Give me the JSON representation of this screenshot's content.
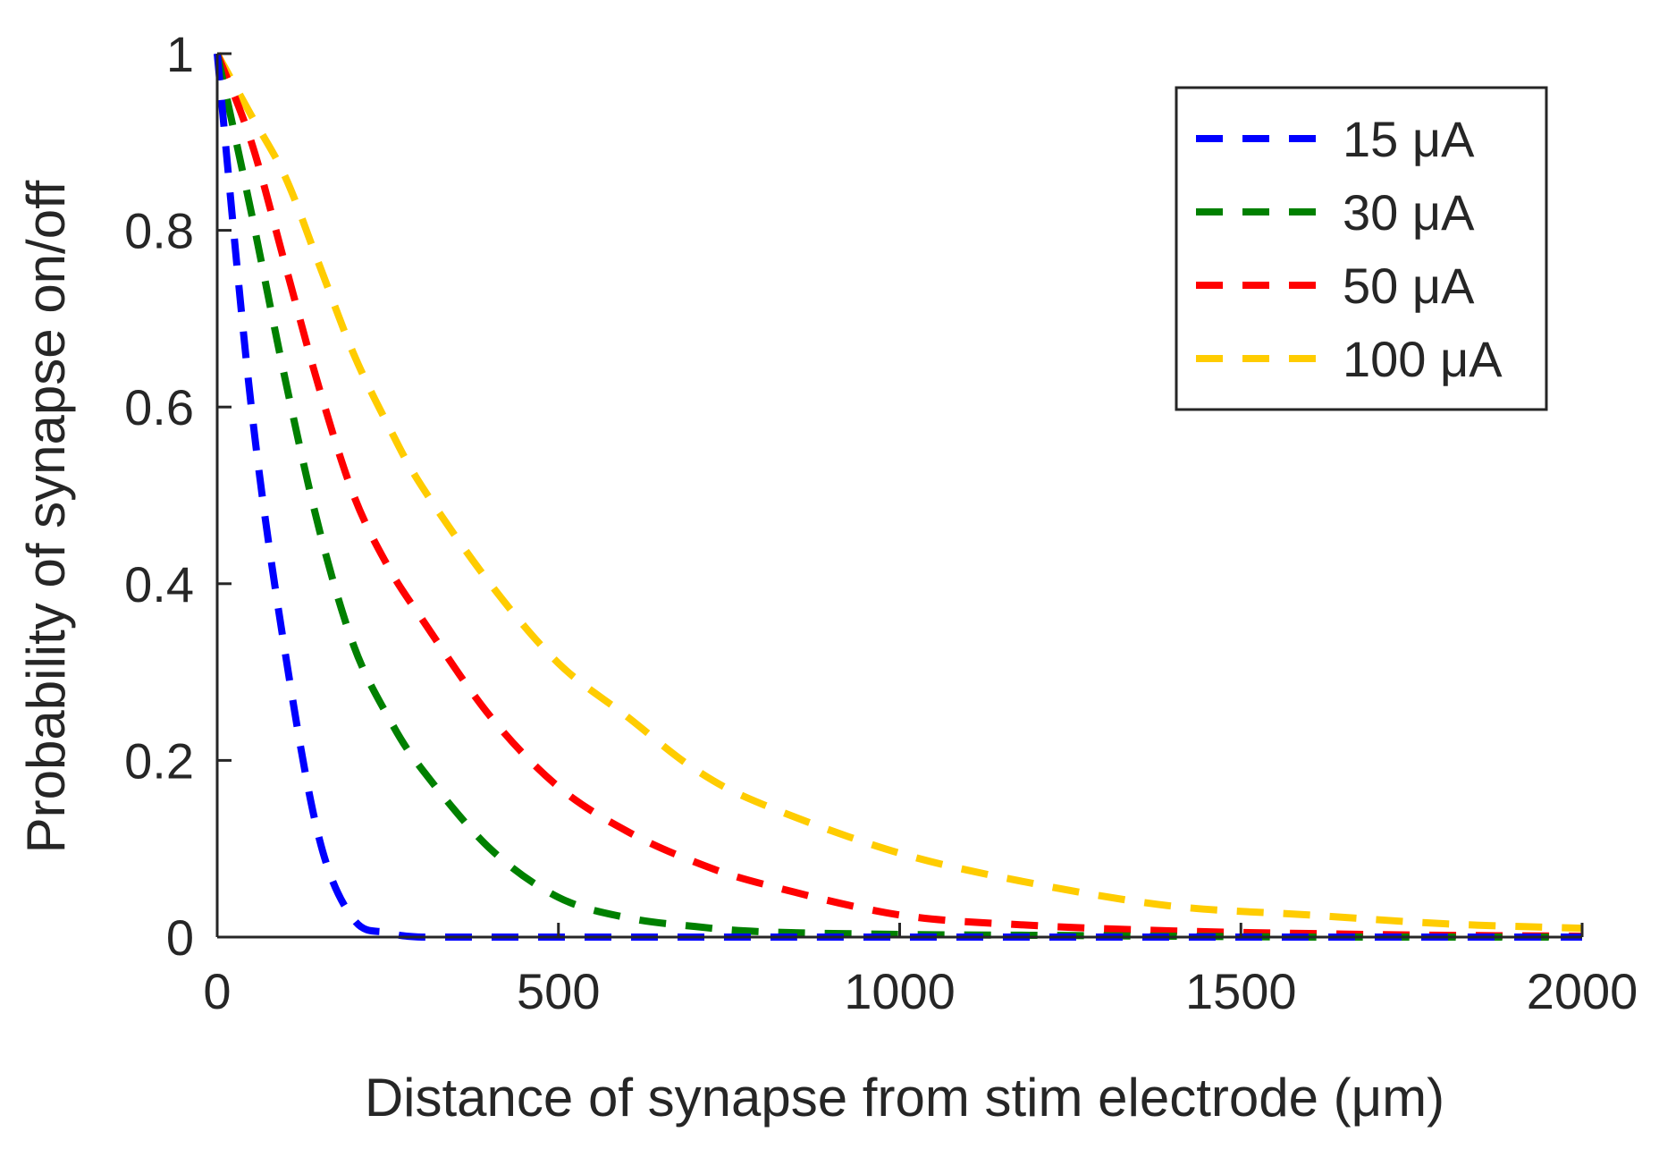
{
  "chart_data": {
    "type": "line",
    "title": "",
    "xlabel": "Distance of synapse from stim electrode (μm)",
    "ylabel": "Probability of synapse on/off",
    "xlim": [
      0,
      2000
    ],
    "ylim": [
      0,
      1
    ],
    "xticks": [
      "0",
      "500",
      "1000",
      "1500",
      "2000"
    ],
    "yticks": [
      "0",
      "0.2",
      "0.4",
      "0.6",
      "0.8",
      "1"
    ],
    "grid": false,
    "legend_position": "top-right",
    "line_style": "dashed",
    "x": [
      0,
      50,
      100,
      150,
      200,
      250,
      300,
      400,
      500,
      600,
      700,
      800,
      1000,
      1200,
      1400,
      1600,
      1800,
      2000
    ],
    "series": [
      {
        "name": "15 μA",
        "color": "#0000ff",
        "values": [
          1.0,
          0.6,
          0.32,
          0.11,
          0.02,
          0.005,
          0.0,
          0.0,
          0.0,
          0.0,
          0.0,
          0.0,
          0.0,
          0.0,
          0.0,
          0.0,
          0.0,
          0.0
        ]
      },
      {
        "name": "30 μA",
        "color": "#008000",
        "values": [
          1.0,
          0.82,
          0.63,
          0.46,
          0.33,
          0.25,
          0.19,
          0.1,
          0.045,
          0.022,
          0.012,
          0.006,
          0.003,
          0.002,
          0.001,
          0.0,
          0.0,
          0.0
        ]
      },
      {
        "name": "50 μA",
        "color": "#ff0000",
        "values": [
          1.0,
          0.9,
          0.76,
          0.62,
          0.5,
          0.42,
          0.36,
          0.25,
          0.17,
          0.12,
          0.085,
          0.06,
          0.025,
          0.013,
          0.007,
          0.004,
          0.002,
          0.001
        ]
      },
      {
        "name": "100 μA",
        "color": "#ffcc00",
        "values": [
          1.0,
          0.93,
          0.86,
          0.76,
          0.66,
          0.58,
          0.51,
          0.4,
          0.31,
          0.25,
          0.19,
          0.15,
          0.095,
          0.06,
          0.035,
          0.025,
          0.015,
          0.01
        ]
      }
    ]
  }
}
